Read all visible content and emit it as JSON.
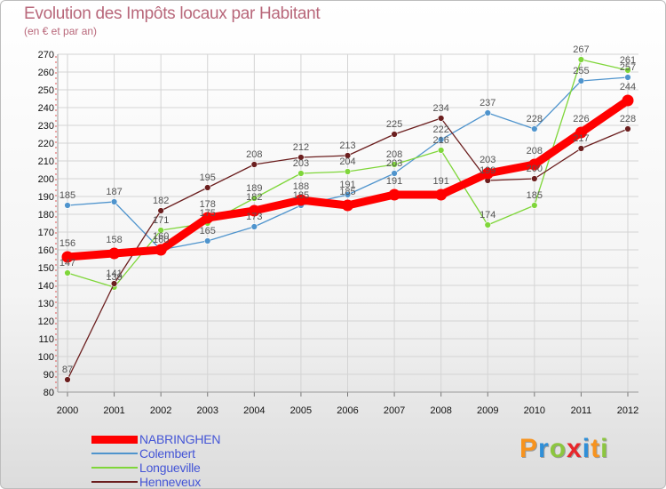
{
  "header": {
    "title": "Evolution des Impôts locaux par Habitant",
    "subtitle": "(en € et par an)"
  },
  "colors": {
    "NABRINGHEN": "#ff0000",
    "Colembert": "#4f94cd",
    "Longueville": "#7fd63a",
    "Henneveux": "#6b1e1e"
  },
  "chart_data": {
    "type": "line",
    "title": "Evolution des Impôts locaux par Habitant",
    "subtitle": "(en € et par an)",
    "xlabel": "",
    "ylabel": "",
    "x": [
      "2000",
      "2001",
      "2002",
      "2003",
      "2004",
      "2005",
      "2006",
      "2007",
      "2008",
      "2009",
      "2010",
      "2011",
      "2012"
    ],
    "ylim": [
      80,
      270
    ],
    "yticks": [
      80,
      90,
      100,
      110,
      120,
      130,
      140,
      150,
      160,
      170,
      180,
      190,
      200,
      210,
      220,
      230,
      240,
      250,
      260,
      270
    ],
    "series": [
      {
        "name": "Colembert",
        "values": [
          185,
          187,
          160,
          165,
          173,
          185,
          191,
          203,
          222,
          237,
          228,
          255,
          257
        ]
      },
      {
        "name": "Longueville",
        "values": [
          147,
          139,
          171,
          175,
          189,
          203,
          204,
          208,
          216,
          174,
          185,
          267,
          261
        ]
      },
      {
        "name": "Henneveux",
        "values": [
          87,
          141,
          182,
          195,
          208,
          212,
          213,
          225,
          234,
          199,
          200,
          217,
          228
        ]
      },
      {
        "name": "NABRINGHEN",
        "values": [
          156,
          158,
          160,
          178,
          182,
          188,
          185,
          191,
          191,
          203,
          208,
          226,
          244
        ]
      }
    ],
    "legend": [
      "NABRINGHEN",
      "Colembert",
      "Longueville",
      "Henneveux"
    ],
    "legend_position": "bottom-left"
  },
  "logo": {
    "letters": [
      "P",
      "r",
      "o",
      "x",
      "i",
      "t",
      "i"
    ]
  }
}
